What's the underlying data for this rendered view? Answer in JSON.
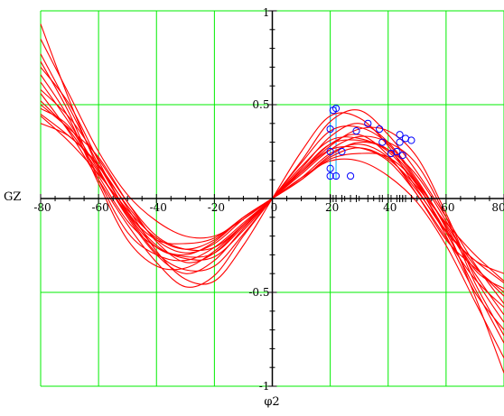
{
  "chart_data": {
    "type": "line",
    "title": "",
    "xlabel": "φ2",
    "ylabel": "GZ",
    "xlim": [
      -80,
      80
    ],
    "ylim": [
      -1,
      1
    ],
    "x_ticks": [
      {
        "value": -80,
        "label": "-80"
      },
      {
        "value": -60,
        "label": "-60"
      },
      {
        "value": -40,
        "label": "-40"
      },
      {
        "value": -20,
        "label": "-20"
      },
      {
        "value": 0,
        "label": "0"
      },
      {
        "value": 20,
        "label": "20"
      },
      {
        "value": 40,
        "label": "40"
      },
      {
        "value": 60,
        "label": "60"
      },
      {
        "value": 80,
        "label": "80"
      }
    ],
    "y_ticks": [
      {
        "value": 1,
        "label": "1"
      },
      {
        "value": 0.5,
        "label": "0.5"
      },
      {
        "value": -0.5,
        "label": "-0.5"
      },
      {
        "value": -1,
        "label": "-1"
      }
    ],
    "grid": true,
    "colors": {
      "grid": "#00ee00",
      "curves": "#ff0000",
      "markers": "#0000ff",
      "guide": "#00aaff",
      "axis": "#000000"
    },
    "x_sample": [
      -80,
      -70,
      -60,
      -50,
      -40,
      -30,
      -20,
      -10,
      0,
      10,
      20,
      30,
      40,
      50,
      60,
      70,
      80
    ],
    "series": [
      {
        "values": [
          0.93,
          0.52,
          0.16,
          -0.08,
          -0.22,
          -0.24,
          -0.21,
          -0.1,
          0.0,
          0.1,
          0.21,
          0.24,
          0.22,
          0.08,
          -0.16,
          -0.52,
          -0.93
        ]
      },
      {
        "values": [
          0.73,
          0.45,
          0.1,
          -0.18,
          -0.3,
          -0.33,
          -0.26,
          -0.13,
          0.0,
          0.13,
          0.26,
          0.33,
          0.3,
          0.18,
          -0.1,
          -0.45,
          -0.73
        ]
      },
      {
        "values": [
          0.5,
          0.37,
          0.22,
          -0.02,
          -0.23,
          -0.34,
          -0.29,
          -0.14,
          0.0,
          0.14,
          0.29,
          0.34,
          0.23,
          0.02,
          -0.22,
          -0.37,
          -0.5
        ]
      },
      {
        "values": [
          0.62,
          0.4,
          0.15,
          -0.1,
          -0.3,
          -0.4,
          -0.33,
          -0.16,
          0.0,
          0.16,
          0.33,
          0.4,
          0.3,
          0.1,
          -0.15,
          -0.4,
          -0.62
        ]
      },
      {
        "values": [
          0.45,
          0.33,
          0.18,
          -0.05,
          -0.28,
          -0.43,
          -0.44,
          -0.25,
          0.0,
          0.25,
          0.44,
          0.43,
          0.28,
          0.05,
          -0.18,
          -0.33,
          -0.45
        ]
      },
      {
        "values": [
          0.56,
          0.35,
          0.1,
          -0.14,
          -0.34,
          -0.47,
          -0.41,
          -0.2,
          0.0,
          0.2,
          0.41,
          0.47,
          0.34,
          0.14,
          -0.1,
          -0.35,
          -0.56
        ]
      },
      {
        "values": [
          0.4,
          0.33,
          0.17,
          -0.04,
          -0.22,
          -0.29,
          -0.24,
          -0.11,
          0.0,
          0.11,
          0.24,
          0.29,
          0.22,
          0.04,
          -0.17,
          -0.33,
          -0.4
        ]
      },
      {
        "values": [
          0.66,
          0.42,
          0.08,
          -0.22,
          -0.36,
          -0.37,
          -0.28,
          -0.14,
          0.0,
          0.14,
          0.28,
          0.37,
          0.36,
          0.22,
          -0.08,
          -0.42,
          -0.66
        ]
      },
      {
        "values": [
          0.48,
          0.38,
          0.12,
          -0.12,
          -0.26,
          -0.3,
          -0.23,
          -0.1,
          0.0,
          0.1,
          0.23,
          0.3,
          0.26,
          0.12,
          -0.12,
          -0.38,
          -0.48
        ]
      },
      {
        "values": [
          0.7,
          0.5,
          0.2,
          -0.08,
          -0.26,
          -0.31,
          -0.29,
          -0.15,
          0.0,
          0.15,
          0.29,
          0.31,
          0.26,
          0.08,
          -0.2,
          -0.5,
          -0.7
        ]
      },
      {
        "values": [
          0.85,
          0.55,
          0.25,
          0.02,
          -0.12,
          -0.2,
          -0.2,
          -0.11,
          0.0,
          0.11,
          0.2,
          0.2,
          0.12,
          -0.02,
          -0.25,
          -0.55,
          -0.85
        ]
      },
      {
        "values": [
          0.58,
          0.43,
          0.21,
          -0.02,
          -0.2,
          -0.27,
          -0.26,
          -0.14,
          0.0,
          0.14,
          0.26,
          0.27,
          0.2,
          0.02,
          -0.21,
          -0.43,
          -0.58
        ]
      },
      {
        "values": [
          0.77,
          0.48,
          0.18,
          -0.07,
          -0.25,
          -0.32,
          -0.31,
          -0.17,
          0.0,
          0.17,
          0.31,
          0.32,
          0.25,
          0.07,
          -0.18,
          -0.48,
          -0.77
        ]
      },
      {
        "values": [
          0.52,
          0.36,
          0.14,
          -0.09,
          -0.29,
          -0.38,
          -0.36,
          -0.19,
          0.0,
          0.19,
          0.36,
          0.38,
          0.29,
          0.09,
          -0.14,
          -0.36,
          -0.52
        ]
      },
      {
        "values": [
          0.44,
          0.3,
          0.13,
          -0.06,
          -0.21,
          -0.27,
          -0.22,
          -0.1,
          0.0,
          0.1,
          0.22,
          0.27,
          0.21,
          0.06,
          -0.13,
          -0.3,
          -0.44
        ]
      }
    ],
    "markers": [
      {
        "x": 21,
        "y": 0.47
      },
      {
        "x": 22,
        "y": 0.48
      },
      {
        "x": 20,
        "y": 0.37
      },
      {
        "x": 20,
        "y": 0.25
      },
      {
        "x": 20,
        "y": 0.16
      },
      {
        "x": 20,
        "y": 0.12
      },
      {
        "x": 22,
        "y": 0.12
      },
      {
        "x": 24,
        "y": 0.25
      },
      {
        "x": 27,
        "y": 0.12
      },
      {
        "x": 29,
        "y": 0.36
      },
      {
        "x": 33,
        "y": 0.4
      },
      {
        "x": 37,
        "y": 0.37
      },
      {
        "x": 38,
        "y": 0.3
      },
      {
        "x": 41,
        "y": 0.24
      },
      {
        "x": 43,
        "y": 0.25
      },
      {
        "x": 44,
        "y": 0.34
      },
      {
        "x": 44,
        "y": 0.3
      },
      {
        "x": 45,
        "y": 0.23
      },
      {
        "x": 46,
        "y": 0.32
      },
      {
        "x": 48,
        "y": 0.31
      }
    ],
    "guide_lines": [
      20,
      22
    ]
  }
}
